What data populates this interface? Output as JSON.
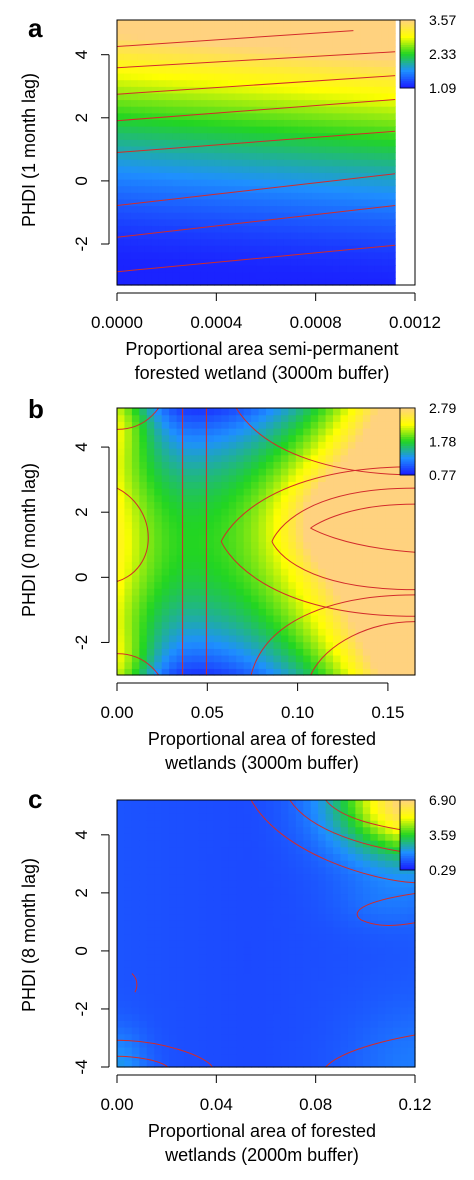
{
  "chart_data": [
    {
      "panel": "a",
      "type": "heatmap",
      "xlabel": [
        "Proportional area semi-permanent",
        "forested wetland (3000m buffer)"
      ],
      "ylabel": "PHDI (1 month lag)",
      "xlim": [
        0,
        0.0012
      ],
      "ylim": [
        -3.3,
        5.1
      ],
      "x_ticks": [
        0,
        0.0004,
        0.0008,
        0.0012
      ],
      "x_tick_labels": [
        "0.0000",
        "0.0004",
        "0.0008",
        "0.0012"
      ],
      "y_ticks": [
        -2,
        0,
        2,
        4
      ],
      "y_tick_labels": [
        "-2",
        "0",
        "2",
        "4"
      ],
      "colorbar_ticks": [
        "3.57",
        "2.33",
        "1.09"
      ],
      "colorbar_range": [
        1.09,
        3.57
      ],
      "data_xmax": 0.00112,
      "surface": "z increases with PHDI; highest at top left, lowest at bottom",
      "grid": false
    },
    {
      "panel": "b",
      "type": "heatmap",
      "xlabel": [
        "Proportional area of forested",
        "wetlands (3000m buffer)"
      ],
      "ylabel": "PHDI (0 month lag)",
      "xlim": [
        0,
        0.165
      ],
      "ylim": [
        -3,
        5.2
      ],
      "x_ticks": [
        0,
        0.05,
        0.1,
        0.15
      ],
      "x_tick_labels": [
        "0.00",
        "0.05",
        "0.10",
        "0.15"
      ],
      "y_ticks": [
        -2,
        0,
        2,
        4
      ],
      "y_tick_labels": [
        "-2",
        "0",
        "2",
        "4"
      ],
      "colorbar_ticks": [
        "2.79",
        "1.78",
        "0.77"
      ],
      "colorbar_range": [
        0.77,
        2.79
      ],
      "surface": "saddle centred near x=0.04, y=1; peaks at right-middle and at left top/bottom corners",
      "grid": false
    },
    {
      "panel": "c",
      "type": "heatmap",
      "xlabel": [
        "Proportional area of forested",
        "wetlands (2000m buffer)"
      ],
      "ylabel": "PHDI (8 month lag)",
      "xlim": [
        0,
        0.12
      ],
      "ylim": [
        -4,
        5.2
      ],
      "x_ticks": [
        0,
        0.04,
        0.08,
        0.12
      ],
      "x_tick_labels": [
        "0.00",
        "0.04",
        "0.08",
        "0.12"
      ],
      "y_ticks": [
        -4,
        -2,
        0,
        2,
        4
      ],
      "y_tick_labels": [
        "-4",
        "-2",
        "0",
        "2",
        "4"
      ],
      "colorbar_ticks": [
        "6.90",
        "3.59",
        "0.29"
      ],
      "colorbar_range": [
        0.29,
        6.9
      ],
      "surface": "mostly low; strong peak at top-right corner, small rise at bottom-left and bottom-right",
      "grid": false
    }
  ],
  "colors": {
    "low": "#1a1aff",
    "mid_low": "#1e90ff",
    "mid": "#22d522",
    "mid_high": "#ffff00",
    "high": "#ffd27f",
    "contour": "#d22b2b"
  }
}
